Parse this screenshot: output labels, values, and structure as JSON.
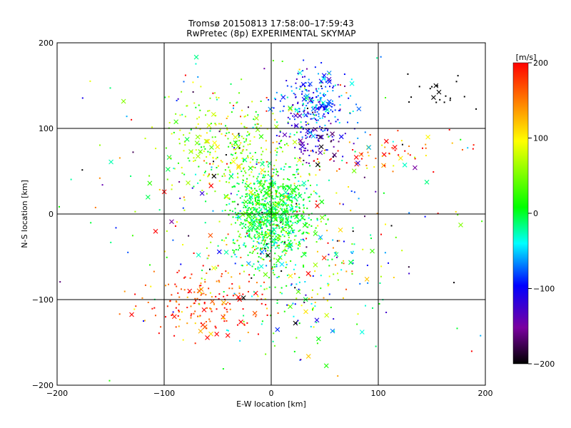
{
  "chart_data": {
    "type": "scatter",
    "title": "Tromsø 20150813 17:58:00–17:59:43",
    "subtitle": "RwPretec (8p) EXPERIMENTAL SKYMAP",
    "xlabel": "E-W location [km]",
    "ylabel": "N-S location [km]",
    "xlim": [
      -200,
      200
    ],
    "ylim": [
      -200,
      200
    ],
    "xticks": [
      -200,
      -100,
      0,
      100,
      200
    ],
    "yticks": [
      -200,
      -100,
      0,
      100,
      200
    ],
    "grid": true,
    "colorbar": {
      "label": "[m/s]",
      "range": [
        -200,
        200
      ],
      "ticks": [
        200,
        100,
        0,
        -100,
        -200
      ],
      "colors": [
        "#000000",
        "#800080",
        "#0000ff",
        "#00ffff",
        "#00ff00",
        "#ffff00",
        "#ff0000"
      ]
    },
    "marker_legend": "dots and crosses colored by line-of-sight velocity",
    "clusters": [
      {
        "name": "central",
        "x": 0,
        "y": 0,
        "sx": 18,
        "sy": 28,
        "n": 900,
        "v": 5,
        "vs": 25
      },
      {
        "name": "upper-left-green",
        "x": -40,
        "y": 80,
        "sx": 30,
        "sy": 30,
        "n": 300,
        "v": 60,
        "vs": 40
      },
      {
        "name": "cyan-north",
        "x": 40,
        "y": 130,
        "sx": 15,
        "sy": 20,
        "n": 250,
        "v": -80,
        "vs": 30
      },
      {
        "name": "blue-northeast",
        "x": 40,
        "y": 85,
        "sx": 15,
        "sy": 15,
        "n": 80,
        "v": -130,
        "vs": 30
      },
      {
        "name": "east-streak",
        "x": 110,
        "y": 70,
        "sx": 45,
        "sy": 10,
        "n": 60,
        "v": 160,
        "vs": 60
      },
      {
        "name": "black-northeast",
        "x": 150,
        "y": 140,
        "sx": 18,
        "sy": 15,
        "n": 20,
        "v": -210,
        "vs": 5
      },
      {
        "name": "southwest-red",
        "x": -60,
        "y": -105,
        "sx": 30,
        "sy": 18,
        "n": 180,
        "v": 180,
        "vs": 40
      },
      {
        "name": "south-scatter",
        "x": 20,
        "y": -60,
        "sx": 40,
        "sy": 50,
        "n": 250,
        "v": 20,
        "vs": 70
      },
      {
        "name": "sparse-field",
        "x": 0,
        "y": 20,
        "sx": 100,
        "sy": 90,
        "n": 250,
        "v": 0,
        "vs": 150
      }
    ]
  }
}
